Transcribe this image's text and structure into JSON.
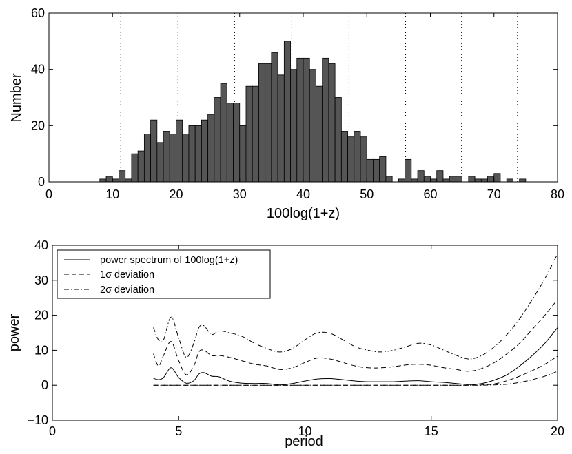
{
  "chart_data": [
    {
      "type": "bar",
      "title": "",
      "xlabel": "100log(1+z)",
      "ylabel": "Number",
      "xlim": [
        0,
        80
      ],
      "ylim": [
        0,
        60
      ],
      "xticks": [
        "0",
        "10",
        "20",
        "30",
        "40",
        "50",
        "60",
        "70",
        "80"
      ],
      "yticks": [
        "0",
        "20",
        "40",
        "60"
      ],
      "bin_width": 1,
      "bin_starts": [
        8,
        9,
        10,
        11,
        12,
        13,
        14,
        15,
        16,
        17,
        18,
        19,
        20,
        21,
        22,
        23,
        24,
        25,
        26,
        27,
        28,
        29,
        30,
        31,
        32,
        33,
        34,
        35,
        36,
        37,
        38,
        39,
        40,
        41,
        42,
        43,
        44,
        45,
        46,
        47,
        48,
        49,
        50,
        51,
        52,
        53,
        54,
        55,
        56,
        57,
        58,
        59,
        60,
        61,
        62,
        63,
        64,
        65,
        66,
        67,
        68,
        69,
        70,
        71,
        72,
        73,
        74
      ],
      "values": [
        1,
        2,
        1,
        4,
        1,
        10,
        11,
        17,
        22,
        14,
        18,
        17,
        22,
        17,
        20,
        20,
        22,
        24,
        30,
        35,
        28,
        28,
        20,
        34,
        34,
        42,
        42,
        46,
        38,
        50,
        40,
        44,
        44,
        40,
        34,
        44,
        42,
        30,
        18,
        16,
        18,
        16,
        8,
        8,
        9,
        2,
        0,
        1,
        8,
        1,
        4,
        2,
        1,
        4,
        1,
        2,
        2,
        0,
        2,
        1,
        1,
        2,
        3,
        0,
        1,
        0,
        1
      ],
      "vertical_dotted_lines": [
        11.3,
        20.3,
        29.2,
        38.2,
        47.2,
        56.1,
        64.9,
        73.7
      ]
    },
    {
      "type": "line",
      "title": "",
      "xlabel": "period",
      "ylabel": "power",
      "xlim": [
        0,
        20
      ],
      "ylim": [
        -10,
        40
      ],
      "xticks": [
        "0",
        "5",
        "10",
        "15",
        "20"
      ],
      "yticks": [
        "−10",
        "0",
        "10",
        "20",
        "30",
        "40"
      ],
      "x": [
        4.0,
        4.2,
        4.4,
        4.7,
        5.0,
        5.3,
        5.6,
        5.8,
        6.0,
        6.3,
        6.6,
        7.0,
        7.5,
        8.0,
        8.5,
        9.0,
        9.5,
        10.0,
        10.5,
        11.0,
        11.5,
        12.0,
        12.5,
        13.0,
        13.5,
        14.0,
        14.5,
        15.0,
        15.5,
        16.0,
        16.5,
        17.0,
        17.5,
        18.0,
        18.5,
        19.0,
        19.5,
        20.0
      ],
      "series": [
        {
          "name": "power spectrum of 100log(1+z)",
          "style": "solid",
          "values": [
            2,
            1.6,
            2.2,
            5,
            2.2,
            0.6,
            1.3,
            3.2,
            3.6,
            2.6,
            2.4,
            1.2,
            0.6,
            0.5,
            0.5,
            0.1,
            0.5,
            1.2,
            1.8,
            1.9,
            1.6,
            1.2,
            1.0,
            1.0,
            1.0,
            1.2,
            1.3,
            1.0,
            0.8,
            0.5,
            0.2,
            0.5,
            1.5,
            3.0,
            5.5,
            8.5,
            12,
            16.5
          ]
        },
        {
          "name": "1σ deviation",
          "style": "dashed",
          "values": [
            9,
            5.5,
            8.5,
            12.5,
            7,
            3,
            5.5,
            9.5,
            10,
            8.5,
            8.5,
            8,
            7,
            6,
            5.5,
            4.5,
            5,
            6.5,
            7.8,
            7.5,
            6.5,
            5.5,
            5,
            5,
            5.3,
            5.8,
            6,
            5.7,
            5,
            4.5,
            4,
            4.8,
            6.5,
            9,
            12,
            16,
            20,
            24.5
          ]
        },
        {
          "name": "2σ deviation",
          "style": "dashdot",
          "values": [
            16.5,
            13,
            13,
            19.5,
            13.5,
            8,
            12,
            16.5,
            17,
            14.5,
            15.5,
            15,
            14,
            12,
            10.5,
            9.5,
            10.5,
            13,
            15,
            14.8,
            13,
            11,
            10,
            9.5,
            10,
            11,
            12,
            11.5,
            10,
            8.5,
            7.5,
            8.5,
            11,
            14.5,
            19,
            24.5,
            30.5,
            37.5
          ]
        },
        {
          "name": "",
          "style": "dashed",
          "values": [
            0,
            0,
            0,
            0,
            0,
            0,
            0,
            0,
            0,
            0,
            0,
            0,
            0,
            0,
            0,
            0,
            0,
            0,
            0,
            0,
            0,
            0,
            0,
            0,
            0,
            0,
            0,
            0,
            0,
            0,
            0,
            0.1,
            0.4,
            1.3,
            2.6,
            4.2,
            6.0,
            8.3
          ]
        },
        {
          "name": "",
          "style": "dashdot",
          "values": [
            0,
            0,
            0,
            0,
            0,
            0,
            0,
            0,
            0,
            0,
            0,
            0,
            0,
            0,
            0,
            0,
            0,
            0,
            0,
            0,
            0,
            0,
            0,
            0,
            0,
            0,
            0,
            0,
            0,
            0,
            0,
            0,
            0.1,
            0.3,
            0.8,
            1.6,
            2.6,
            4.0
          ]
        }
      ],
      "legend_position": "top-left",
      "legend": [
        {
          "label": "power spectrum of 100log(1+z)",
          "style": "solid"
        },
        {
          "label": "1σ deviation",
          "style": "dashed"
        },
        {
          "label": "2σ deviation",
          "style": "dashdot"
        }
      ]
    }
  ]
}
